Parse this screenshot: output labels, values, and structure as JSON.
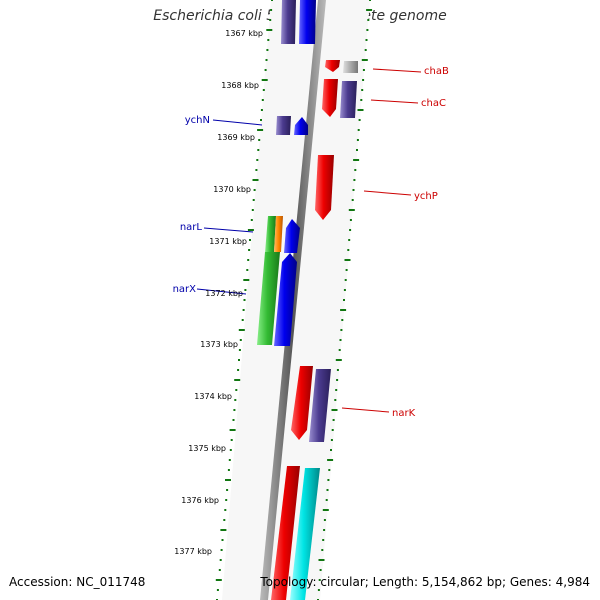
{
  "title": "Escherichia coli 55989, complete genome",
  "accession": "Accession: NC_011748",
  "summary": "Topology: circular; Length: 5,154,862 bp; Genes: 4,984",
  "kbp_labels": [
    "1367 kbp",
    "1368 kbp",
    "1369 kbp",
    "1370 kbp",
    "1371 kbp",
    "1372 kbp",
    "1373 kbp",
    "1374 kbp",
    "1375 kbp",
    "1376 kbp",
    "1377 kbp"
  ],
  "gene_labels": {
    "chaB": "chaB",
    "chaC": "chaC",
    "ychN": "ychN",
    "ychP": "ychP",
    "narL": "narL",
    "narX": "narX",
    "narK": "narK"
  },
  "colors": {
    "forward_label": "#cc0000",
    "reverse_label": "#0000aa",
    "red": "#ee0000",
    "blue": "#0000ee",
    "purple": "#4b3b8f",
    "green": "#33bb33",
    "orange": "#ff8800",
    "cyan": "#00e5e5",
    "grey": "#bbbbbb",
    "tick_green": "#117711",
    "backbone": "#888888"
  }
}
